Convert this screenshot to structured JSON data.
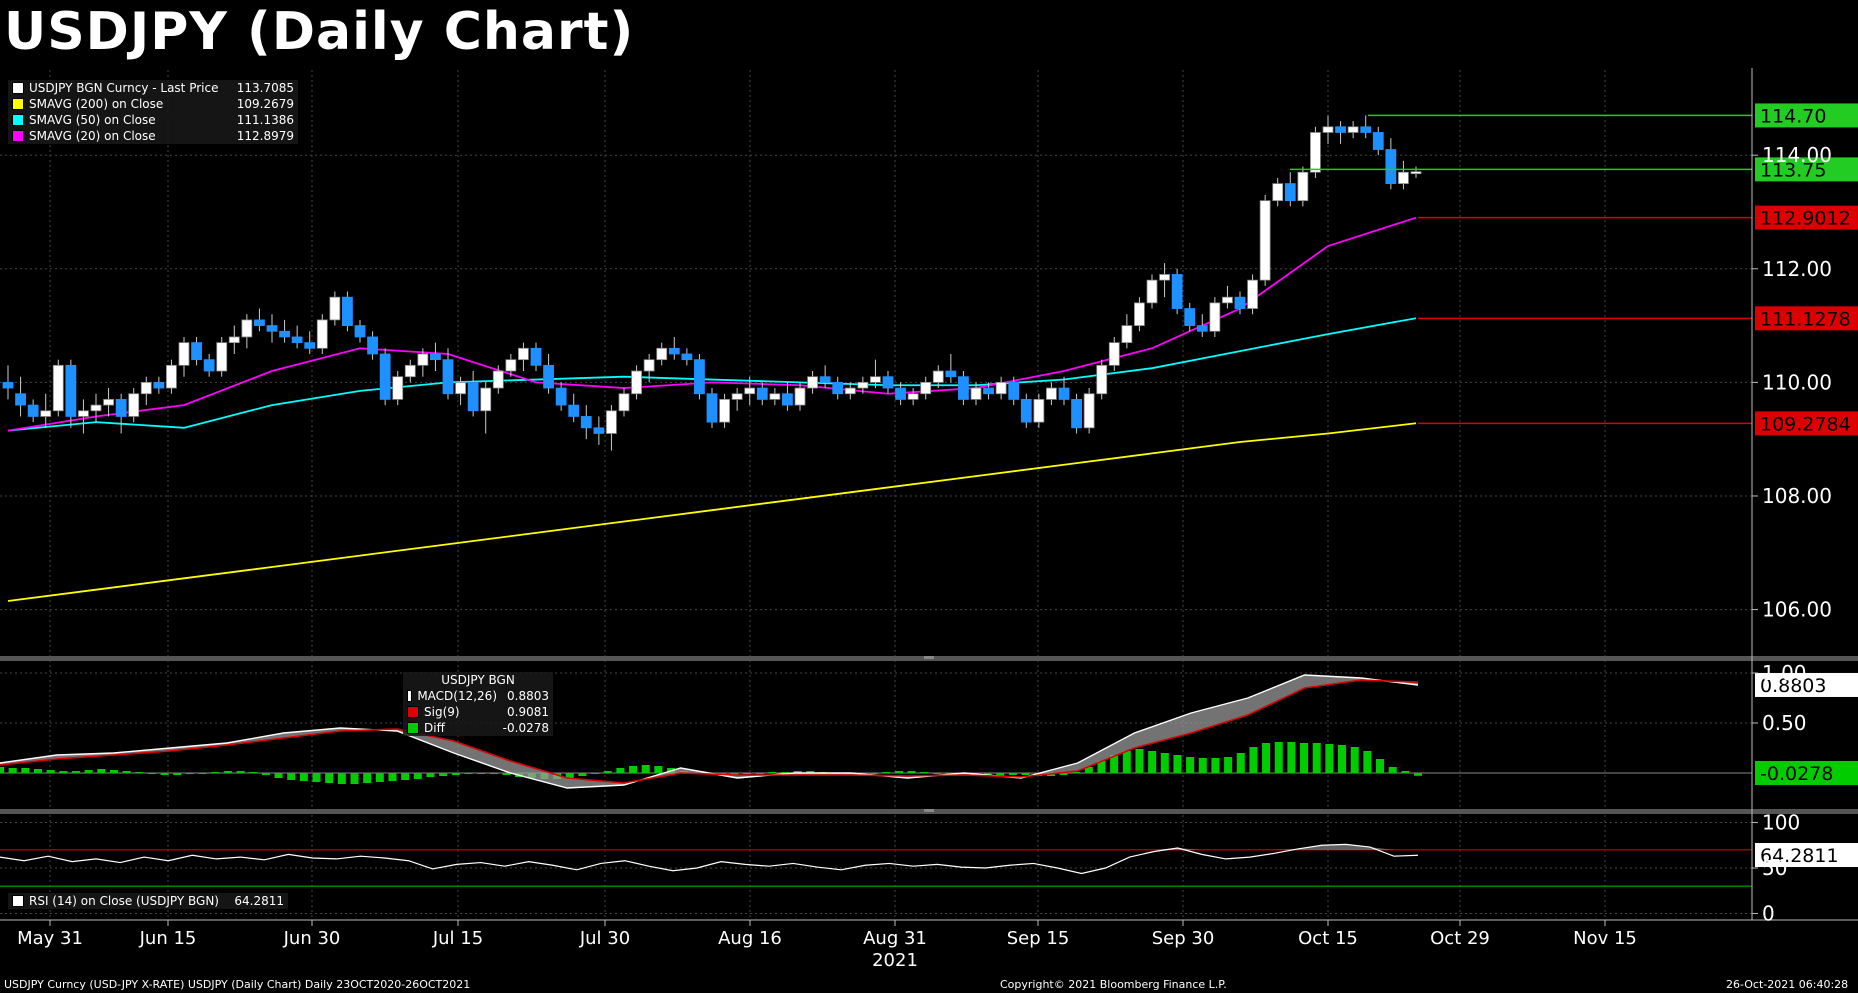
{
  "title": "USDJPY (Daily Chart)",
  "chart_data": [
    {
      "type": "candlestick",
      "panel": "price",
      "legend": [
        {
          "name": "USDJPY BGN Curncy - Last Price",
          "value": "113.7085",
          "color": "#ffffff"
        },
        {
          "name": "SMAVG (200)  on Close",
          "value": "109.2679",
          "color": "#ffff00"
        },
        {
          "name": "SMAVG (50)  on Close",
          "value": "111.1386",
          "color": "#00ffff"
        },
        {
          "name": "SMAVG (20)  on Close",
          "value": "112.8979",
          "color": "#ff00ff"
        }
      ],
      "ylim": [
        105.2,
        115.5
      ],
      "yticks": [
        "114.00",
        "112.00",
        "110.00",
        "108.00",
        "106.00"
      ],
      "ytick_values": [
        114,
        112,
        110,
        108,
        106
      ],
      "tags": [
        {
          "label": "114.70",
          "value": 114.7,
          "color": "#22cc22"
        },
        {
          "label": "113.75",
          "value": 113.75,
          "color": "#22cc22"
        },
        {
          "label": "112.9012",
          "value": 112.9012,
          "color": "#dd0000"
        },
        {
          "label": "111.1278",
          "value": 111.1278,
          "color": "#dd0000"
        },
        {
          "label": "109.2784",
          "value": 109.2784,
          "color": "#dd0000"
        }
      ],
      "candles": [
        [
          110.0,
          110.3,
          109.7,
          109.9
        ],
        [
          109.8,
          110.1,
          109.4,
          109.6
        ],
        [
          109.6,
          109.7,
          109.3,
          109.4
        ],
        [
          109.4,
          109.8,
          109.2,
          109.5
        ],
        [
          109.5,
          110.4,
          109.4,
          110.3
        ],
        [
          110.3,
          110.4,
          109.2,
          109.4
        ],
        [
          109.4,
          109.7,
          109.1,
          109.5
        ],
        [
          109.5,
          109.8,
          109.3,
          109.6
        ],
        [
          109.6,
          109.9,
          109.4,
          109.7
        ],
        [
          109.7,
          109.8,
          109.1,
          109.4
        ],
        [
          109.4,
          109.9,
          109.3,
          109.8
        ],
        [
          109.8,
          110.1,
          109.6,
          110.0
        ],
        [
          110.0,
          110.1,
          109.8,
          109.9
        ],
        [
          109.9,
          110.4,
          109.8,
          110.3
        ],
        [
          110.3,
          110.8,
          110.1,
          110.7
        ],
        [
          110.7,
          110.8,
          110.3,
          110.4
        ],
        [
          110.4,
          110.5,
          110.1,
          110.2
        ],
        [
          110.2,
          110.8,
          110.1,
          110.7
        ],
        [
          110.7,
          111.0,
          110.5,
          110.8
        ],
        [
          110.8,
          111.2,
          110.6,
          111.1
        ],
        [
          111.1,
          111.3,
          110.9,
          111.0
        ],
        [
          111.0,
          111.2,
          110.7,
          110.9
        ],
        [
          110.9,
          111.1,
          110.7,
          110.8
        ],
        [
          110.8,
          111.0,
          110.6,
          110.7
        ],
        [
          110.7,
          110.9,
          110.5,
          110.6
        ],
        [
          110.6,
          111.2,
          110.5,
          111.1
        ],
        [
          111.1,
          111.6,
          111.0,
          111.5
        ],
        [
          111.5,
          111.6,
          110.9,
          111.0
        ],
        [
          111.0,
          111.1,
          110.7,
          110.8
        ],
        [
          110.8,
          110.9,
          110.4,
          110.5
        ],
        [
          110.5,
          110.6,
          109.6,
          109.7
        ],
        [
          109.7,
          110.2,
          109.6,
          110.1
        ],
        [
          110.1,
          110.4,
          110.0,
          110.3
        ],
        [
          110.3,
          110.6,
          110.1,
          110.5
        ],
        [
          110.5,
          110.7,
          110.2,
          110.4
        ],
        [
          110.4,
          110.6,
          109.7,
          109.8
        ],
        [
          109.8,
          110.1,
          109.6,
          110.0
        ],
        [
          110.0,
          110.2,
          109.4,
          109.5
        ],
        [
          109.5,
          110.0,
          109.1,
          109.9
        ],
        [
          109.9,
          110.3,
          109.8,
          110.2
        ],
        [
          110.2,
          110.5,
          110.1,
          110.4
        ],
        [
          110.4,
          110.7,
          110.2,
          110.6
        ],
        [
          110.6,
          110.7,
          110.2,
          110.3
        ],
        [
          110.3,
          110.5,
          109.8,
          109.9
        ],
        [
          109.9,
          110.0,
          109.5,
          109.6
        ],
        [
          109.6,
          109.8,
          109.3,
          109.4
        ],
        [
          109.4,
          109.6,
          109.0,
          109.2
        ],
        [
          109.2,
          109.4,
          108.9,
          109.1
        ],
        [
          109.1,
          109.6,
          108.8,
          109.5
        ],
        [
          109.5,
          109.9,
          109.4,
          109.8
        ],
        [
          109.8,
          110.3,
          109.7,
          110.2
        ],
        [
          110.2,
          110.5,
          110.0,
          110.4
        ],
        [
          110.4,
          110.7,
          110.3,
          110.6
        ],
        [
          110.6,
          110.8,
          110.4,
          110.5
        ],
        [
          110.5,
          110.6,
          110.3,
          110.4
        ],
        [
          110.4,
          110.5,
          109.7,
          109.8
        ],
        [
          109.8,
          109.9,
          109.2,
          109.3
        ],
        [
          109.3,
          109.8,
          109.2,
          109.7
        ],
        [
          109.7,
          109.9,
          109.5,
          109.8
        ],
        [
          109.8,
          110.1,
          109.6,
          109.9
        ],
        [
          109.9,
          110.0,
          109.6,
          109.7
        ],
        [
          109.7,
          109.9,
          109.6,
          109.8
        ],
        [
          109.8,
          110.0,
          109.5,
          109.6
        ],
        [
          109.6,
          110.0,
          109.5,
          109.9
        ],
        [
          109.9,
          110.2,
          109.8,
          110.1
        ],
        [
          110.1,
          110.3,
          109.9,
          110.0
        ],
        [
          110.0,
          110.1,
          109.7,
          109.8
        ],
        [
          109.8,
          110.0,
          109.7,
          109.9
        ],
        [
          109.9,
          110.1,
          109.8,
          110.0
        ],
        [
          110.0,
          110.4,
          109.9,
          110.1
        ],
        [
          110.1,
          110.2,
          109.8,
          109.9
        ],
        [
          109.9,
          110.0,
          109.6,
          109.7
        ],
        [
          109.7,
          109.9,
          109.6,
          109.8
        ],
        [
          109.8,
          110.1,
          109.7,
          110.0
        ],
        [
          110.0,
          110.3,
          109.9,
          110.2
        ],
        [
          110.2,
          110.5,
          110.0,
          110.1
        ],
        [
          110.1,
          110.2,
          109.6,
          109.7
        ],
        [
          109.7,
          110.0,
          109.6,
          109.9
        ],
        [
          109.9,
          110.0,
          109.7,
          109.8
        ],
        [
          109.8,
          110.1,
          109.7,
          110.0
        ],
        [
          110.0,
          110.1,
          109.6,
          109.7
        ],
        [
          109.7,
          109.8,
          109.2,
          109.3
        ],
        [
          109.3,
          109.8,
          109.2,
          109.7
        ],
        [
          109.7,
          110.0,
          109.6,
          109.9
        ],
        [
          109.9,
          110.1,
          109.6,
          109.7
        ],
        [
          109.7,
          109.8,
          109.1,
          109.2
        ],
        [
          109.2,
          109.9,
          109.1,
          109.8
        ],
        [
          109.8,
          110.4,
          109.7,
          110.3
        ],
        [
          110.3,
          110.8,
          110.2,
          110.7
        ],
        [
          110.7,
          111.2,
          110.6,
          111.0
        ],
        [
          111.0,
          111.5,
          110.9,
          111.4
        ],
        [
          111.4,
          111.9,
          111.3,
          111.8
        ],
        [
          111.8,
          112.1,
          111.5,
          111.9
        ],
        [
          111.9,
          112.0,
          111.2,
          111.3
        ],
        [
          111.3,
          111.4,
          110.9,
          111.0
        ],
        [
          111.0,
          111.2,
          110.8,
          110.9
        ],
        [
          110.9,
          111.5,
          110.8,
          111.4
        ],
        [
          111.4,
          111.7,
          111.3,
          111.5
        ],
        [
          111.5,
          111.6,
          111.2,
          111.3
        ],
        [
          111.3,
          111.9,
          111.2,
          111.8
        ],
        [
          111.8,
          113.3,
          111.7,
          113.2
        ],
        [
          113.2,
          113.6,
          113.1,
          113.5
        ],
        [
          113.5,
          113.7,
          113.1,
          113.2
        ],
        [
          113.2,
          113.8,
          113.1,
          113.7
        ],
        [
          113.7,
          114.5,
          113.6,
          114.4
        ],
        [
          114.4,
          114.7,
          114.2,
          114.5
        ],
        [
          114.5,
          114.6,
          114.2,
          114.4
        ],
        [
          114.4,
          114.6,
          114.3,
          114.5
        ],
        [
          114.5,
          114.7,
          114.3,
          114.4
        ],
        [
          114.4,
          114.5,
          114.0,
          114.1
        ],
        [
          114.1,
          114.3,
          113.4,
          113.5
        ],
        [
          113.5,
          113.9,
          113.4,
          113.7
        ],
        [
          113.7,
          113.8,
          113.6,
          113.71
        ]
      ],
      "series": [
        {
          "name": "SMAVG (200)  on Close",
          "color": "#ffff00",
          "values": [
            106.15,
            106.35,
            106.55,
            106.75,
            106.95,
            107.15,
            107.35,
            107.55,
            107.75,
            107.95,
            108.15,
            108.35,
            108.55,
            108.75,
            108.95,
            109.1,
            109.28
          ]
        },
        {
          "name": "SMAVG (50)  on Close",
          "color": "#00ffff",
          "values": [
            109.15,
            109.3,
            109.2,
            109.6,
            109.85,
            110.0,
            110.05,
            110.1,
            110.05,
            110.0,
            109.95,
            109.95,
            110.05,
            110.25,
            110.55,
            110.85,
            111.13
          ]
        },
        {
          "name": "SMAVG (20)  on Close",
          "color": "#ff00ff",
          "values": [
            109.15,
            109.4,
            109.6,
            110.2,
            110.6,
            110.5,
            110.0,
            109.9,
            110.0,
            109.95,
            109.8,
            109.9,
            110.2,
            110.6,
            111.3,
            112.4,
            112.9
          ]
        }
      ]
    },
    {
      "type": "line",
      "panel": "macd",
      "legend_title": "USDJPY BGN",
      "legend": [
        {
          "name": "MACD(12,26)",
          "value": "0.8803",
          "color": "#ffffff"
        },
        {
          "name": "Sig(9)",
          "value": "0.9081",
          "color": "#dd0000"
        },
        {
          "name": "Diff",
          "value": "-0.0278",
          "color": "#00cc00"
        }
      ],
      "ylim": [
        -0.35,
        1.05
      ],
      "yticks": [
        "1.00",
        "0.50"
      ],
      "ytick_values": [
        1.0,
        0.5
      ],
      "tags": [
        {
          "label": "0.8803",
          "value": 0.8803,
          "color": "#ffffff",
          "text_color": "#000000"
        },
        {
          "label": "-0.0278",
          "value": 0.0,
          "color": "#00cc00",
          "text_color": "#000000"
        }
      ],
      "macd": [
        0.1,
        0.18,
        0.2,
        0.25,
        0.3,
        0.4,
        0.45,
        0.42,
        0.2,
        0.0,
        -0.15,
        -0.12,
        0.05,
        -0.05,
        0.0,
        0.0,
        -0.05,
        0.0,
        -0.05,
        0.1,
        0.4,
        0.6,
        0.75,
        0.98,
        0.95,
        0.88
      ],
      "signal": [
        0.08,
        0.14,
        0.18,
        0.22,
        0.28,
        0.35,
        0.42,
        0.44,
        0.32,
        0.12,
        -0.05,
        -0.1,
        0.0,
        -0.02,
        -0.02,
        -0.02,
        -0.03,
        -0.02,
        -0.04,
        0.02,
        0.25,
        0.4,
        0.58,
        0.85,
        0.93,
        0.9081
      ],
      "diff_bars": [
        0.06,
        0.05,
        0.05,
        0.04,
        0.03,
        0.02,
        0.02,
        0.03,
        0.04,
        0.03,
        0.02,
        0.01,
        -0.01,
        -0.02,
        -0.02,
        -0.01,
        0.0,
        0.01,
        0.02,
        0.02,
        0.01,
        -0.02,
        -0.05,
        -0.07,
        -0.08,
        -0.09,
        -0.1,
        -0.11,
        -0.11,
        -0.1,
        -0.09,
        -0.08,
        -0.07,
        -0.06,
        -0.04,
        -0.03,
        -0.02,
        -0.01,
        0.0,
        -0.01,
        -0.02,
        -0.04,
        -0.05,
        -0.06,
        -0.06,
        -0.05,
        -0.03,
        -0.01,
        0.02,
        0.05,
        0.07,
        0.08,
        0.07,
        0.05,
        0.02,
        0.0,
        -0.01,
        -0.02,
        -0.02,
        -0.01,
        0.0,
        0.01,
        0.01,
        0.02,
        0.02,
        0.01,
        0.0,
        -0.01,
        -0.01,
        0.0,
        0.01,
        0.02,
        0.02,
        0.01,
        0.0,
        0.0,
        -0.01,
        -0.02,
        -0.03,
        -0.03,
        -0.02,
        -0.02,
        -0.03,
        -0.03,
        -0.02,
        0.01,
        0.06,
        0.12,
        0.18,
        0.22,
        0.24,
        0.22,
        0.2,
        0.18,
        0.16,
        0.15,
        0.15,
        0.16,
        0.2,
        0.26,
        0.3,
        0.31,
        0.31,
        0.3,
        0.3,
        0.29,
        0.28,
        0.26,
        0.22,
        0.14,
        0.06,
        0.02,
        -0.0278
      ]
    },
    {
      "type": "line",
      "panel": "rsi",
      "legend": [
        {
          "name": "RSI (14)  on Close (USDJPY BGN)",
          "value": "64.2811",
          "color": "#ffffff"
        }
      ],
      "ylim": [
        -5,
        105
      ],
      "yticks": [
        "100",
        "50",
        "0"
      ],
      "ytick_values": [
        100,
        50,
        0
      ],
      "levels": [
        {
          "value": 70,
          "color": "#cc0000"
        },
        {
          "value": 30,
          "color": "#00aa00"
        }
      ],
      "tags": [
        {
          "label": "64.2811",
          "value": 64.2811,
          "color": "#ffffff",
          "text_color": "#000000"
        }
      ],
      "values": [
        62,
        58,
        63,
        57,
        60,
        56,
        62,
        58,
        64,
        60,
        62,
        59,
        65,
        61,
        60,
        63,
        61,
        58,
        49,
        54,
        56,
        52,
        57,
        53,
        48,
        55,
        58,
        52,
        47,
        50,
        57,
        54,
        52,
        55,
        51,
        48,
        53,
        55,
        52,
        54,
        51,
        50,
        53,
        55,
        50,
        44,
        50,
        62,
        68,
        72,
        65,
        60,
        62,
        66,
        71,
        75,
        76,
        73,
        63,
        64
      ]
    }
  ],
  "x_axis": {
    "labels": [
      "May 31",
      "Jun 15",
      "Jun 30",
      "Jul 15",
      "Jul 30",
      "Aug 16",
      "Aug 31",
      "Sep 15",
      "Sep 30",
      "Oct 15",
      "Oct 29",
      "Nov 15"
    ],
    "year": "2021"
  },
  "footer": {
    "left": "USDJPY Curncy (USD-JPY X-RATE) USDJPY (Daily Chart)  Daily 23OCT2020-26OCT2021",
    "center": "Copyright© 2021 Bloomberg Finance L.P.",
    "right": "26-Oct-2021 06:40:28"
  }
}
